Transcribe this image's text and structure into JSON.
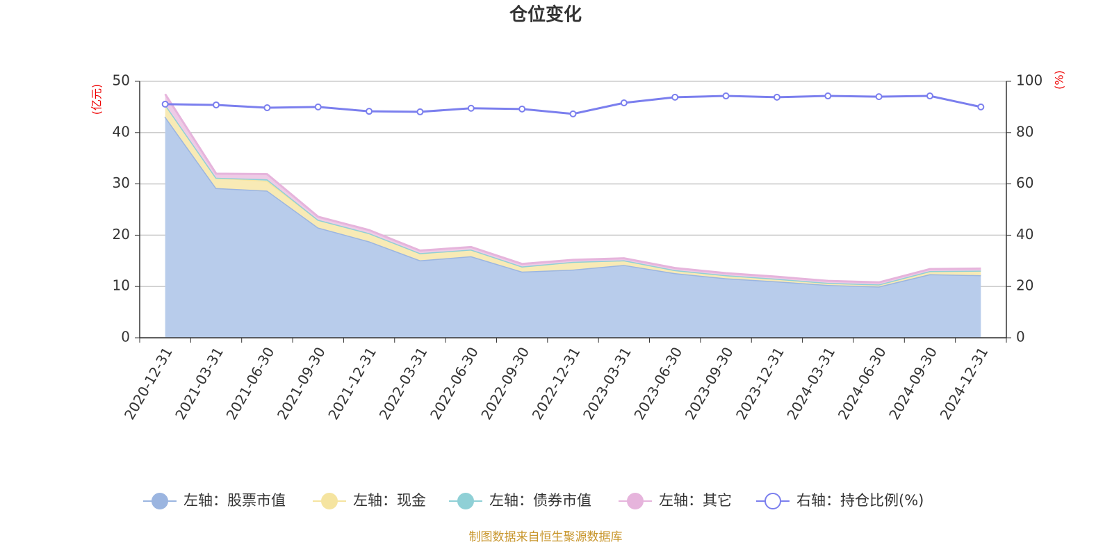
{
  "chart_data": {
    "type": "stacked-area-line",
    "title": "仓位变化",
    "y_label": "(亿元)",
    "y2_label": "(%)",
    "source": "制图数据来自恒生聚源数据库",
    "categories": [
      "2020-12-31",
      "2021-03-31",
      "2021-06-30",
      "2021-09-30",
      "2021-12-31",
      "2022-03-31",
      "2022-06-30",
      "2022-09-30",
      "2022-12-31",
      "2023-03-31",
      "2023-06-30",
      "2023-09-30",
      "2023-12-31",
      "2024-03-31",
      "2024-06-30",
      "2024-09-30",
      "2024-12-31"
    ],
    "ylim": [
      0,
      50
    ],
    "yticks": [
      0,
      10,
      20,
      30,
      40,
      50
    ],
    "y2lim": [
      0,
      100
    ],
    "y2ticks": [
      0,
      20,
      40,
      60,
      80,
      100
    ],
    "grid": true,
    "series": [
      {
        "name": "左轴：股票市值",
        "color": "#9bb5e0",
        "fill": "#b8cceb",
        "values": [
          43.1,
          29.2,
          28.7,
          21.5,
          18.8,
          15.1,
          15.9,
          12.9,
          13.3,
          14.2,
          12.6,
          11.6,
          11.0,
          10.3,
          10.0,
          12.4,
          12.2
        ]
      },
      {
        "name": "左轴：现金",
        "color": "#f5e4a0",
        "fill": "#f8eab5",
        "values": [
          2.4,
          2.0,
          1.9,
          1.5,
          1.6,
          1.4,
          1.3,
          1.0,
          1.5,
          0.9,
          0.6,
          0.6,
          0.5,
          0.4,
          0.4,
          0.6,
          0.9
        ]
      },
      {
        "name": "左轴：债券市值",
        "color": "#8fd0d6",
        "fill": "#b2e0e4",
        "values": [
          0,
          0,
          0.3,
          0,
          0,
          0,
          0,
          0,
          0,
          0,
          0,
          0,
          0,
          0,
          0,
          0,
          0
        ]
      },
      {
        "name": "左轴：其它",
        "color": "#e6b4dc",
        "fill": "#eecbe6",
        "values": [
          2.0,
          0.8,
          1.0,
          0.6,
          0.6,
          0.5,
          0.5,
          0.5,
          0.4,
          0.4,
          0.4,
          0.4,
          0.4,
          0.4,
          0.4,
          0.4,
          0.4
        ]
      },
      {
        "name": "右轴：持仓比例(%)",
        "color": "#7b7fee",
        "axis": "y2",
        "values": [
          91.1,
          90.8,
          89.7,
          90.0,
          88.3,
          88.1,
          89.5,
          89.2,
          87.3,
          91.6,
          93.8,
          94.3,
          93.8,
          94.3,
          94.0,
          94.3,
          90.0
        ]
      }
    ]
  }
}
